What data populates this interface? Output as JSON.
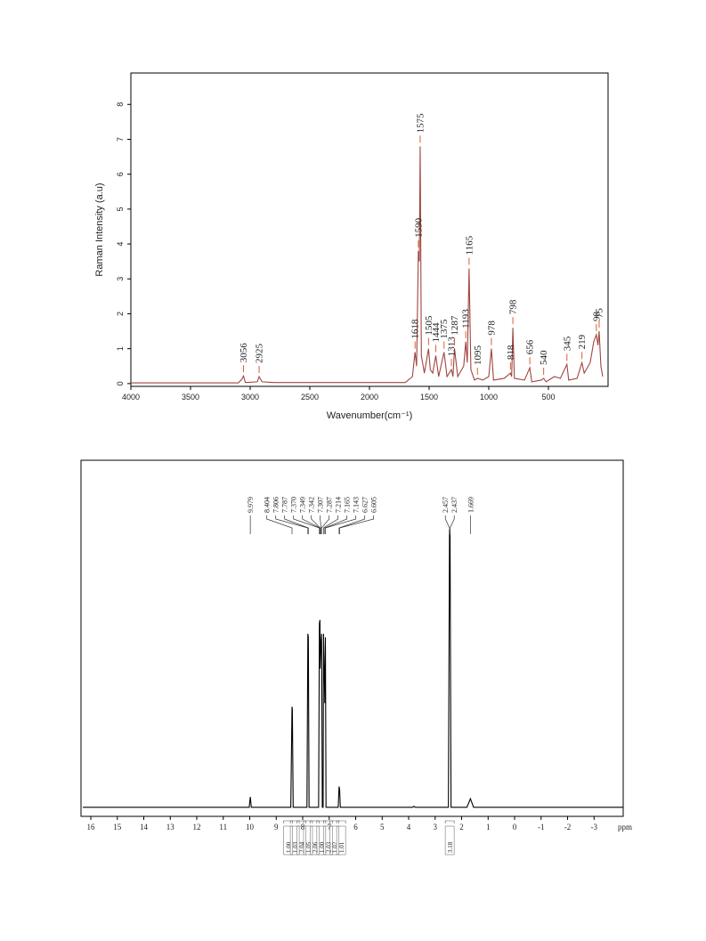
{
  "chart_data": [
    {
      "type": "line",
      "x_label": "Wavenumber(cm⁻¹)",
      "y_label": "Raman Intensity (a.u)",
      "color": "#a0453f",
      "peak_label_color": "#d9622b",
      "xlim": [
        4000,
        0
      ],
      "ylim": [
        -0.08,
        8.9
      ],
      "xticks": [
        4000,
        3500,
        3000,
        2500,
        2000,
        1500,
        1000,
        500
      ],
      "yticks": [
        0,
        1,
        2,
        3,
        4,
        5,
        6,
        7,
        8
      ],
      "x": [
        4000,
        3100,
        3070,
        3056,
        3040,
        2940,
        2925,
        2900,
        2800,
        1700,
        1640,
        1618,
        1605,
        1590,
        1582,
        1575,
        1565,
        1540,
        1505,
        1490,
        1470,
        1444,
        1420,
        1375,
        1350,
        1313,
        1300,
        1287,
        1260,
        1210,
        1193,
        1180,
        1165,
        1150,
        1120,
        1095,
        1050,
        1000,
        978,
        960,
        870,
        818,
        808,
        798,
        785,
        700,
        656,
        640,
        560,
        540,
        520,
        450,
        400,
        345,
        330,
        260,
        219,
        200,
        150,
        120,
        98,
        85,
        75,
        60,
        45
      ],
      "values": [
        0.02,
        0.02,
        0.12,
        0.22,
        0.03,
        0.05,
        0.2,
        0.05,
        0.03,
        0.03,
        0.2,
        0.9,
        0.5,
        3.8,
        3.5,
        6.8,
        0.8,
        0.3,
        1.0,
        0.4,
        0.3,
        0.8,
        0.2,
        0.9,
        0.2,
        0.4,
        0.2,
        1.0,
        0.2,
        0.5,
        1.2,
        0.6,
        3.3,
        0.4,
        0.1,
        0.15,
        0.1,
        0.2,
        1.0,
        0.1,
        0.15,
        0.3,
        0.2,
        1.6,
        0.15,
        0.1,
        0.45,
        0.05,
        0.1,
        0.15,
        0.05,
        0.2,
        0.15,
        0.55,
        0.1,
        0.15,
        0.6,
        0.3,
        0.6,
        1.2,
        1.4,
        1.1,
        1.5,
        0.5,
        0.2
      ],
      "peak_labels": [
        3056,
        2925,
        1618,
        1590,
        1575,
        1505,
        1444,
        1375,
        1313,
        1287,
        1193,
        1165,
        1095,
        978,
        818,
        798,
        656,
        540,
        345,
        219,
        98,
        75
      ]
    },
    {
      "type": "line",
      "x_label": "ppm",
      "color": "#000000",
      "xlim": [
        16.37,
        -4.1
      ],
      "ylim": [
        -2.6,
        100
      ],
      "xticks": [
        16,
        15,
        14,
        13,
        12,
        11,
        10,
        9,
        8,
        7,
        6,
        5,
        4,
        3,
        2,
        1,
        0,
        -1,
        -2,
        -3
      ],
      "x": [
        16.3,
        10.02,
        9.979,
        9.94,
        8.45,
        8.404,
        8.39,
        8.36,
        7.84,
        7.806,
        7.787,
        7.76,
        7.4,
        7.37,
        7.349,
        7.342,
        7.307,
        7.287,
        7.26,
        7.23,
        7.214,
        7.165,
        7.143,
        7.12,
        6.66,
        6.627,
        6.605,
        6.58,
        3.85,
        3.8,
        3.75,
        2.5,
        2.457,
        2.437,
        2.4,
        1.8,
        1.669,
        1.55,
        -4.1
      ],
      "values": [
        0,
        0,
        3,
        0,
        0,
        29,
        28,
        0,
        0,
        50,
        49,
        0,
        0,
        53,
        54,
        40,
        48,
        50,
        0,
        0,
        50,
        30,
        49,
        0,
        0,
        6,
        5,
        0,
        0,
        0.3,
        0,
        0,
        80,
        78,
        0,
        0,
        2.5,
        0,
        0
      ],
      "peak_labels": [
        9.979,
        8.404,
        7.806,
        7.787,
        {
          "value": 7.37,
          "label": "7.370"
        },
        7.349,
        7.342,
        7.307,
        7.287,
        7.214,
        7.165,
        7.143,
        6.627,
        6.605,
        2.457,
        2.437,
        1.669
      ],
      "integrals": [
        {
          "x": 8.55,
          "value": 1,
          "label": "1.00"
        },
        {
          "x": 8.3,
          "value": 1.03,
          "label": "1.03"
        },
        {
          "x": 8.05,
          "value": 2.04,
          "label": "2.04"
        },
        {
          "x": 7.8,
          "value": 1.05,
          "label": "1.05"
        },
        {
          "x": 7.55,
          "value": 2.06,
          "label": "2.06"
        },
        {
          "x": 7.3,
          "value": 1,
          "label": "1.00"
        },
        {
          "x": 7.05,
          "value": 2.03,
          "label": "2.03"
        },
        {
          "x": 6.8,
          "value": 1.02,
          "label": "1.02"
        },
        {
          "x": 6.55,
          "value": 1.01,
          "label": "1.01"
        },
        {
          "x": 2.45,
          "value": 3.18,
          "label": "3.18"
        }
      ]
    }
  ]
}
